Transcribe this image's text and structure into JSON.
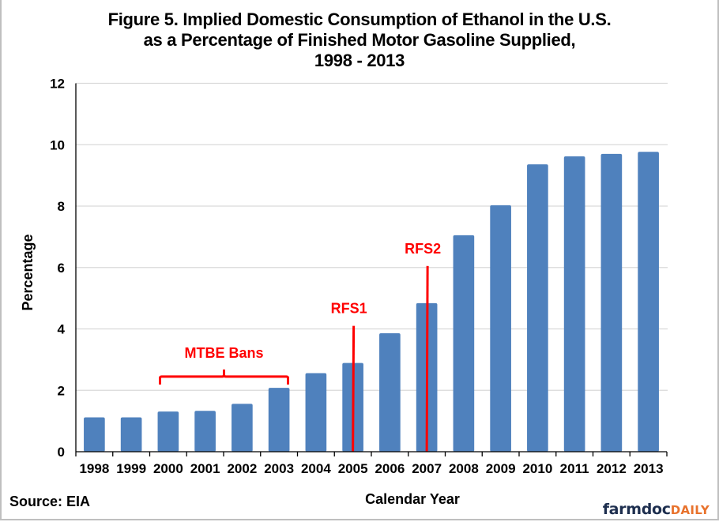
{
  "chart_data": {
    "type": "bar",
    "title": "Figure 5. Implied Domestic Consumption of Ethanol in the U.S. as a Percentage of Finished Motor Gasoline Supplied, 1998 - 2013",
    "title_lines": [
      "Figure 5. Implied Domestic Consumption of Ethanol in the U.S.",
      "as a Percentage of Finished Motor Gasoline Supplied,",
      "1998 - 2013"
    ],
    "xlabel": "Calendar Year",
    "ylabel": "Percentage",
    "ylim": [
      0,
      12
    ],
    "yticks": [
      0,
      2,
      4,
      6,
      8,
      10,
      12
    ],
    "grid": true,
    "categories": [
      "1998",
      "1999",
      "2000",
      "2001",
      "2002",
      "2003",
      "2004",
      "2005",
      "2006",
      "2007",
      "2008",
      "2009",
      "2010",
      "2011",
      "2012",
      "2013"
    ],
    "values": [
      1.12,
      1.12,
      1.31,
      1.33,
      1.56,
      2.08,
      2.56,
      2.89,
      3.86,
      4.84,
      7.05,
      8.03,
      9.36,
      9.62,
      9.7,
      9.77
    ],
    "bar_color": "#4f81bd",
    "annotation_color": "#ff0000",
    "annotations": [
      {
        "type": "bracket",
        "label": "MTBE Bans",
        "from_category": "2000",
        "to_category": "2003",
        "y_value": 2.5
      },
      {
        "type": "vline",
        "label": "RFS1",
        "category": "2005",
        "offset": 0.5,
        "y_top": 4.1
      },
      {
        "type": "vline",
        "label": "RFS2",
        "category": "2007",
        "offset": 0.5,
        "y_top": 6.05
      }
    ]
  },
  "source": "Source: EIA",
  "logo": {
    "part1": "farmdoc",
    "part2": "DAILY"
  }
}
